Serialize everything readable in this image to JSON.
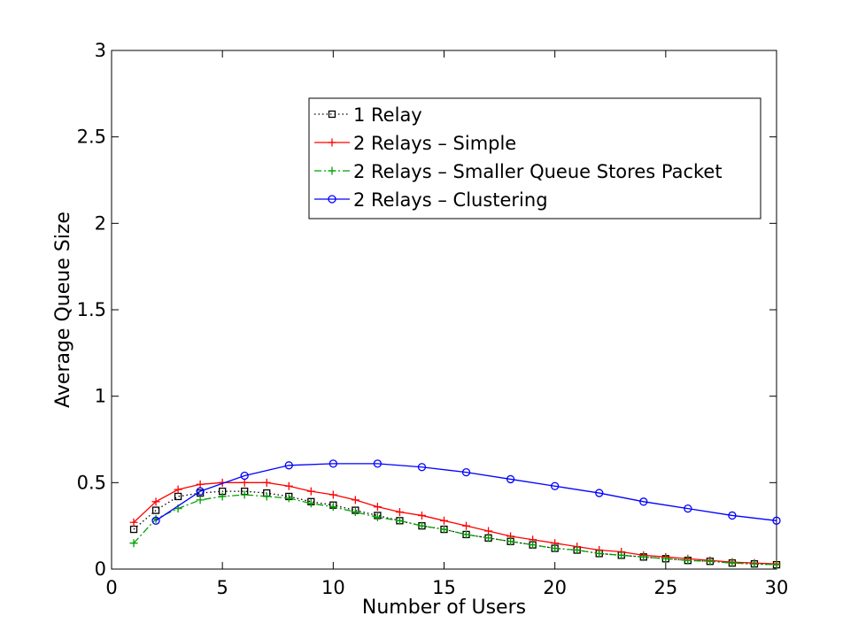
{
  "chart_data": {
    "type": "line",
    "title": "",
    "xlabel": "Number of Users",
    "ylabel": "Average Queue Size",
    "xlim": [
      0,
      30
    ],
    "ylim": [
      0,
      3
    ],
    "xticks": [
      0,
      5,
      10,
      15,
      20,
      25,
      30
    ],
    "yticks": [
      0,
      0.5,
      1,
      1.5,
      2,
      2.5,
      3
    ],
    "xtick_labels": [
      "0",
      "5",
      "10",
      "15",
      "20",
      "25",
      "30"
    ],
    "ytick_labels": [
      "0",
      "0.5",
      "1",
      "1.5",
      "2",
      "2.5",
      "3"
    ],
    "grid": false,
    "legend_position": "upper-right",
    "series": [
      {
        "name": "1 Relay",
        "color": "#000000",
        "line_style": "dotted",
        "marker": "square",
        "x": [
          1,
          2,
          3,
          4,
          5,
          6,
          7,
          8,
          9,
          10,
          11,
          12,
          13,
          14,
          15,
          16,
          17,
          18,
          19,
          20,
          21,
          22,
          23,
          24,
          25,
          26,
          27,
          28,
          29,
          30
        ],
        "y": [
          0.23,
          0.34,
          0.42,
          0.44,
          0.45,
          0.45,
          0.44,
          0.42,
          0.39,
          0.37,
          0.34,
          0.31,
          0.28,
          0.25,
          0.23,
          0.2,
          0.18,
          0.16,
          0.14,
          0.12,
          0.11,
          0.09,
          0.08,
          0.07,
          0.06,
          0.05,
          0.045,
          0.035,
          0.03,
          0.025
        ]
      },
      {
        "name": "2 Relays – Simple",
        "color": "#ff0000",
        "line_style": "solid",
        "marker": "plus",
        "x": [
          1,
          2,
          3,
          4,
          5,
          6,
          7,
          8,
          9,
          10,
          11,
          12,
          13,
          14,
          15,
          16,
          17,
          18,
          19,
          20,
          21,
          22,
          23,
          24,
          25,
          26,
          27,
          28,
          29,
          30
        ],
        "y": [
          0.27,
          0.39,
          0.46,
          0.49,
          0.5,
          0.5,
          0.5,
          0.48,
          0.45,
          0.43,
          0.4,
          0.36,
          0.33,
          0.31,
          0.28,
          0.25,
          0.22,
          0.19,
          0.17,
          0.15,
          0.13,
          0.11,
          0.1,
          0.08,
          0.07,
          0.06,
          0.05,
          0.04,
          0.035,
          0.03
        ]
      },
      {
        "name": "2 Relays – Smaller Queue Stores Packet",
        "color": "#00a000",
        "line_style": "dashdot",
        "marker": "plus",
        "x": [
          1,
          2,
          3,
          4,
          5,
          6,
          7,
          8,
          9,
          10,
          11,
          12,
          13,
          14,
          15,
          16,
          17,
          18,
          19,
          20,
          21,
          22,
          23,
          24,
          25,
          26,
          27,
          28,
          29,
          30
        ],
        "y": [
          0.15,
          0.29,
          0.35,
          0.4,
          0.42,
          0.43,
          0.42,
          0.41,
          0.38,
          0.36,
          0.33,
          0.3,
          0.28,
          0.25,
          0.23,
          0.2,
          0.18,
          0.16,
          0.14,
          0.12,
          0.11,
          0.09,
          0.08,
          0.07,
          0.06,
          0.05,
          0.045,
          0.035,
          0.03,
          0.025
        ]
      },
      {
        "name": "2 Relays – Clustering",
        "color": "#0000ff",
        "line_style": "solid",
        "marker": "circle",
        "x": [
          2,
          4,
          6,
          8,
          10,
          12,
          14,
          16,
          18,
          20,
          22,
          24,
          26,
          28,
          30
        ],
        "y": [
          0.28,
          0.45,
          0.54,
          0.6,
          0.61,
          0.61,
          0.59,
          0.56,
          0.52,
          0.48,
          0.44,
          0.39,
          0.35,
          0.31,
          0.28
        ]
      }
    ]
  }
}
